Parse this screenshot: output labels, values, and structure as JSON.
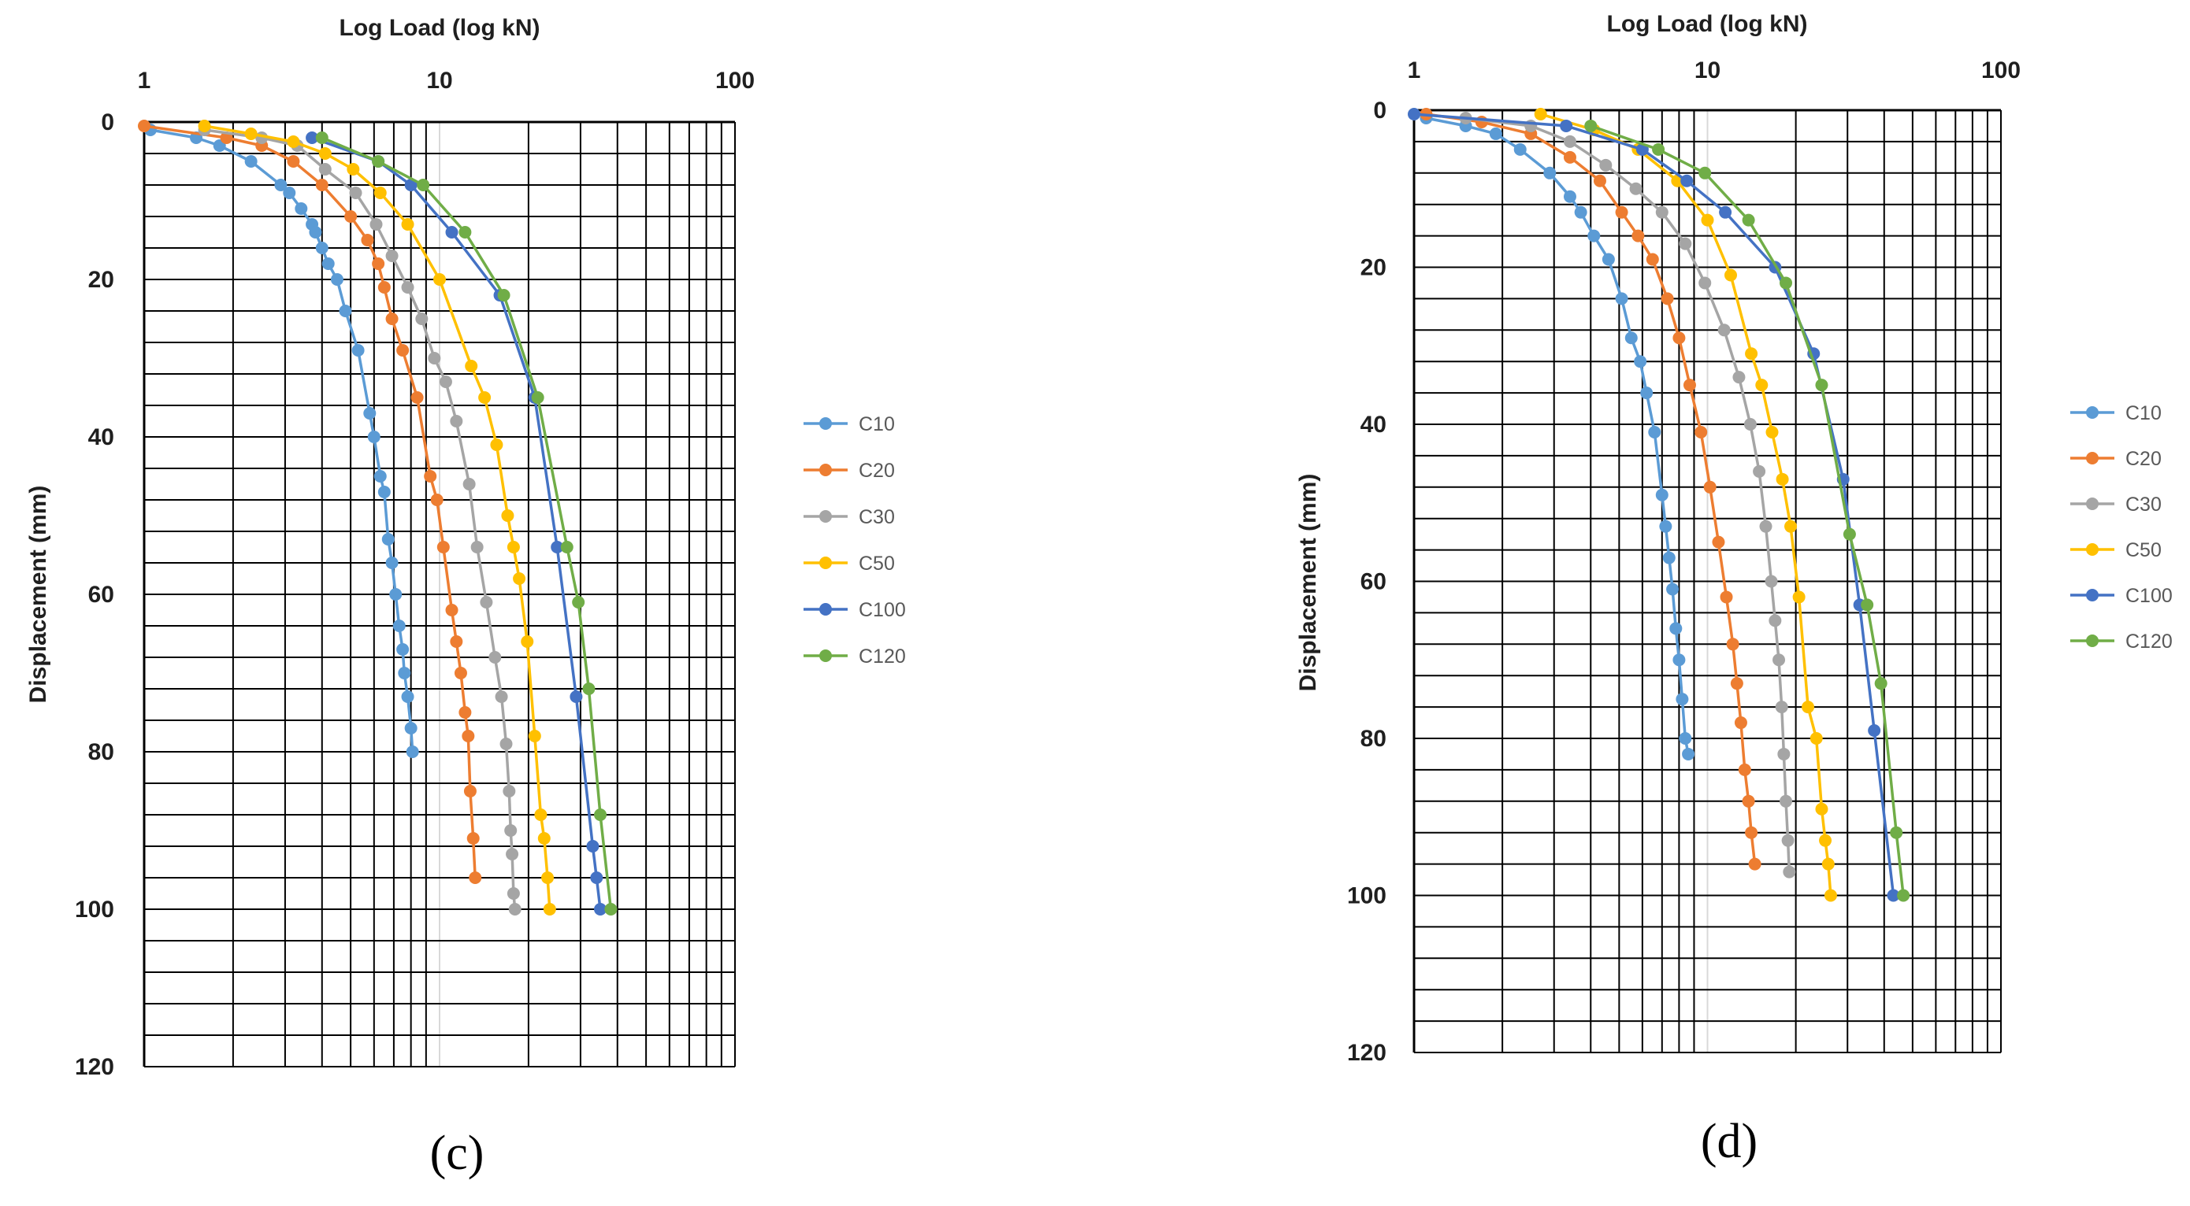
{
  "chart_data": [
    {
      "type": "scatter",
      "panel_label": "(c)",
      "xlabel": "Log Load (log kN)",
      "ylabel": "Displacement (mm)",
      "x_scale": "log",
      "xlim": [
        1,
        100
      ],
      "ylim": [
        0,
        120
      ],
      "y_inverted": true,
      "x_ticks": [
        1,
        10,
        100
      ],
      "x_tick_labels": [
        "1",
        "10",
        "100"
      ],
      "y_ticks": [
        0,
        20,
        40,
        60,
        80,
        100,
        120
      ],
      "y_tick_labels": [
        "0",
        "20",
        "40",
        "60",
        "80",
        "100",
        "120"
      ],
      "grid": true,
      "legend": "right",
      "series": [
        {
          "name": "C10",
          "color": "#5b9bd5",
          "points": [
            [
              1.05,
              1
            ],
            [
              1.5,
              2
            ],
            [
              1.8,
              3
            ],
            [
              2.3,
              5
            ],
            [
              2.9,
              8
            ],
            [
              3.1,
              9
            ],
            [
              3.4,
              11
            ],
            [
              3.7,
              13
            ],
            [
              3.8,
              14
            ],
            [
              4.0,
              16
            ],
            [
              4.2,
              18
            ],
            [
              4.5,
              20
            ],
            [
              4.8,
              24
            ],
            [
              5.3,
              29
            ],
            [
              5.8,
              37
            ],
            [
              6.0,
              40
            ],
            [
              6.3,
              45
            ],
            [
              6.5,
              47
            ],
            [
              6.7,
              53
            ],
            [
              6.9,
              56
            ],
            [
              7.1,
              60
            ],
            [
              7.3,
              64
            ],
            [
              7.5,
              67
            ],
            [
              7.6,
              70
            ],
            [
              7.8,
              73
            ],
            [
              8.0,
              77
            ],
            [
              8.1,
              80
            ]
          ]
        },
        {
          "name": "C20",
          "color": "#ed7d31",
          "points": [
            [
              1.0,
              0.5
            ],
            [
              1.9,
              2
            ],
            [
              2.5,
              3
            ],
            [
              3.2,
              5
            ],
            [
              4.0,
              8
            ],
            [
              5.0,
              12
            ],
            [
              5.7,
              15
            ],
            [
              6.2,
              18
            ],
            [
              6.5,
              21
            ],
            [
              6.9,
              25
            ],
            [
              7.5,
              29
            ],
            [
              8.4,
              35
            ],
            [
              9.3,
              45
            ],
            [
              9.8,
              48
            ],
            [
              10.3,
              54
            ],
            [
              11.0,
              62
            ],
            [
              11.4,
              66
            ],
            [
              11.8,
              70
            ],
            [
              12.2,
              75
            ],
            [
              12.5,
              78
            ],
            [
              12.7,
              85
            ],
            [
              13.0,
              91
            ],
            [
              13.2,
              96
            ]
          ]
        },
        {
          "name": "C30",
          "color": "#a5a5a5",
          "points": [
            [
              1.6,
              1
            ],
            [
              2.5,
              2
            ],
            [
              3.3,
              3
            ],
            [
              4.1,
              6
            ],
            [
              5.2,
              9
            ],
            [
              6.1,
              13
            ],
            [
              6.9,
              17
            ],
            [
              7.8,
              21
            ],
            [
              8.7,
              25
            ],
            [
              9.6,
              30
            ],
            [
              10.5,
              33
            ],
            [
              11.4,
              38
            ],
            [
              12.6,
              46
            ],
            [
              13.4,
              54
            ],
            [
              14.4,
              61
            ],
            [
              15.4,
              68
            ],
            [
              16.2,
              73
            ],
            [
              16.8,
              79
            ],
            [
              17.2,
              85
            ],
            [
              17.4,
              90
            ],
            [
              17.6,
              93
            ],
            [
              17.8,
              98
            ],
            [
              18.0,
              100
            ]
          ]
        },
        {
          "name": "C50",
          "color": "#ffc000",
          "points": [
            [
              1.6,
              0.5
            ],
            [
              2.3,
              1.5
            ],
            [
              3.2,
              2.5
            ],
            [
              4.1,
              4
            ],
            [
              5.1,
              6
            ],
            [
              6.3,
              9
            ],
            [
              7.8,
              13
            ],
            [
              10.0,
              20
            ],
            [
              12.8,
              31
            ],
            [
              14.2,
              35
            ],
            [
              15.6,
              41
            ],
            [
              17.0,
              50
            ],
            [
              17.8,
              54
            ],
            [
              18.6,
              58
            ],
            [
              19.8,
              66
            ],
            [
              21.0,
              78
            ],
            [
              22.0,
              88
            ],
            [
              22.6,
              91
            ],
            [
              23.2,
              96
            ],
            [
              23.6,
              100
            ]
          ]
        },
        {
          "name": "C100",
          "color": "#4472c4",
          "points": [
            [
              3.7,
              2
            ],
            [
              6.2,
              5
            ],
            [
              8.0,
              8
            ],
            [
              11.0,
              14
            ],
            [
              16.0,
              22
            ],
            [
              21.0,
              35
            ],
            [
              25.0,
              54
            ],
            [
              29.0,
              73
            ],
            [
              33.0,
              92
            ],
            [
              34.0,
              96
            ],
            [
              35.0,
              100
            ]
          ]
        },
        {
          "name": "C120",
          "color": "#70ad47",
          "points": [
            [
              4.0,
              2
            ],
            [
              6.2,
              5
            ],
            [
              8.8,
              8
            ],
            [
              12.2,
              14
            ],
            [
              16.5,
              22
            ],
            [
              21.5,
              35
            ],
            [
              27.0,
              54
            ],
            [
              29.5,
              61
            ],
            [
              32.0,
              72
            ],
            [
              35.0,
              88
            ],
            [
              38.0,
              100
            ]
          ]
        }
      ]
    },
    {
      "type": "scatter",
      "panel_label": "(d)",
      "xlabel": "Log Load (log kN)",
      "ylabel": "Displacement (mm)",
      "x_scale": "log",
      "xlim": [
        1,
        100
      ],
      "ylim": [
        0,
        120
      ],
      "y_inverted": true,
      "x_ticks": [
        1,
        10,
        100
      ],
      "x_tick_labels": [
        "1",
        "10",
        "100"
      ],
      "y_ticks": [
        0,
        20,
        40,
        60,
        80,
        100,
        120
      ],
      "y_tick_labels": [
        "0",
        "20",
        "40",
        "60",
        "80",
        "100",
        "120"
      ],
      "grid": true,
      "legend": "right",
      "series": [
        {
          "name": "C10",
          "color": "#5b9bd5",
          "points": [
            [
              1.1,
              1
            ],
            [
              1.5,
              2
            ],
            [
              1.9,
              3
            ],
            [
              2.3,
              5
            ],
            [
              2.9,
              8
            ],
            [
              3.4,
              11
            ],
            [
              3.7,
              13
            ],
            [
              4.1,
              16
            ],
            [
              4.6,
              19
            ],
            [
              5.1,
              24
            ],
            [
              5.5,
              29
            ],
            [
              5.9,
              32
            ],
            [
              6.2,
              36
            ],
            [
              6.6,
              41
            ],
            [
              7.0,
              49
            ],
            [
              7.2,
              53
            ],
            [
              7.4,
              57
            ],
            [
              7.6,
              61
            ],
            [
              7.8,
              66
            ],
            [
              8.0,
              70
            ],
            [
              8.2,
              75
            ],
            [
              8.4,
              80
            ],
            [
              8.6,
              82
            ]
          ]
        },
        {
          "name": "C20",
          "color": "#ed7d31",
          "points": [
            [
              1.1,
              0.5
            ],
            [
              1.7,
              1.5
            ],
            [
              2.5,
              3
            ],
            [
              3.4,
              6
            ],
            [
              4.3,
              9
            ],
            [
              5.1,
              13
            ],
            [
              5.8,
              16
            ],
            [
              6.5,
              19
            ],
            [
              7.3,
              24
            ],
            [
              8.0,
              29
            ],
            [
              8.7,
              35
            ],
            [
              9.5,
              41
            ],
            [
              10.2,
              48
            ],
            [
              10.9,
              55
            ],
            [
              11.6,
              62
            ],
            [
              12.2,
              68
            ],
            [
              12.6,
              73
            ],
            [
              13.0,
              78
            ],
            [
              13.4,
              84
            ],
            [
              13.8,
              88
            ],
            [
              14.1,
              92
            ],
            [
              14.5,
              96
            ]
          ]
        },
        {
          "name": "C30",
          "color": "#a5a5a5",
          "points": [
            [
              1.5,
              1
            ],
            [
              2.5,
              2
            ],
            [
              3.4,
              4
            ],
            [
              4.5,
              7
            ],
            [
              5.7,
              10
            ],
            [
              7.0,
              13
            ],
            [
              8.4,
              17
            ],
            [
              9.8,
              22
            ],
            [
              11.4,
              28
            ],
            [
              12.8,
              34
            ],
            [
              14.0,
              40
            ],
            [
              15.0,
              46
            ],
            [
              15.8,
              53
            ],
            [
              16.5,
              60
            ],
            [
              17.0,
              65
            ],
            [
              17.5,
              70
            ],
            [
              17.9,
              76
            ],
            [
              18.2,
              82
            ],
            [
              18.5,
              88
            ],
            [
              18.8,
              93
            ],
            [
              19.0,
              97
            ]
          ]
        },
        {
          "name": "C50",
          "color": "#ffc000",
          "points": [
            [
              2.7,
              0.5
            ],
            [
              4.1,
              2.5
            ],
            [
              5.8,
              5
            ],
            [
              7.9,
              9
            ],
            [
              10.0,
              14
            ],
            [
              12.0,
              21
            ],
            [
              14.1,
              31
            ],
            [
              15.3,
              35
            ],
            [
              16.6,
              41
            ],
            [
              18.0,
              47
            ],
            [
              19.2,
              53
            ],
            [
              20.5,
              62
            ],
            [
              22.0,
              76
            ],
            [
              23.5,
              80
            ],
            [
              24.5,
              89
            ],
            [
              25.2,
              93
            ],
            [
              25.8,
              96
            ],
            [
              26.3,
              100
            ]
          ]
        },
        {
          "name": "C100",
          "color": "#4472c4",
          "points": [
            [
              1.0,
              0.5
            ],
            [
              3.3,
              2
            ],
            [
              6.0,
              5
            ],
            [
              8.5,
              9
            ],
            [
              11.5,
              13
            ],
            [
              17.0,
              20
            ],
            [
              23.0,
              31
            ],
            [
              29.0,
              47
            ],
            [
              33.0,
              63
            ],
            [
              37.0,
              79
            ],
            [
              43.0,
              100
            ]
          ]
        },
        {
          "name": "C120",
          "color": "#70ad47",
          "points": [
            [
              4.0,
              2
            ],
            [
              6.8,
              5
            ],
            [
              9.8,
              8
            ],
            [
              13.8,
              14
            ],
            [
              18.5,
              22
            ],
            [
              24.5,
              35
            ],
            [
              30.5,
              54
            ],
            [
              35.0,
              63
            ],
            [
              39.0,
              73
            ],
            [
              44.0,
              92
            ],
            [
              46.5,
              100
            ]
          ]
        }
      ]
    }
  ]
}
